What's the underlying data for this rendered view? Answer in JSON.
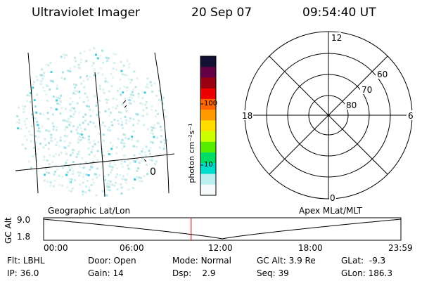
{
  "header": {
    "title": "Ultraviolet Imager",
    "date": "20 Sep 07",
    "time": "09:54:40 UT"
  },
  "image_panel": {
    "map_label": "Geographic Lat/Lon",
    "lon_marker": "0"
  },
  "colorbar": {
    "unit_label": "photon cm⁻²s⁻¹",
    "ticks": [
      "100",
      "10"
    ],
    "colors": [
      "#111133",
      "#660044",
      "#990011",
      "#ee0000",
      "#ff6600",
      "#ff9900",
      "#ffdd00",
      "#ccff00",
      "#55ee00",
      "#00dd66",
      "#00ddcc",
      "#bbeeee",
      "#f6fafa"
    ]
  },
  "polar_plot": {
    "label": "Apex MLat/MLT",
    "mlt_labels": {
      "top": "12",
      "left": "18",
      "right": "6",
      "bottom": "0"
    },
    "lat_labels": [
      "60",
      "70",
      "80"
    ]
  },
  "timeline": {
    "ylabel": "GC Alt",
    "y_ticks": [
      "9.0",
      "1.8"
    ],
    "x_ticks": [
      "00:00",
      "06:00",
      "12:00",
      "18:00",
      "23:59"
    ],
    "current_time_fraction": 0.413,
    "marker_color": "#dd0000"
  },
  "info": {
    "row1": [
      {
        "label": "Flt:",
        "value": "LBHL"
      },
      {
        "label": "Door:",
        "value": "Open"
      },
      {
        "label": "Mode:",
        "value": "Normal"
      },
      {
        "label": "GC Alt:",
        "value": "3.9 Re"
      },
      {
        "label": "GLat:",
        "value": "-9.3"
      }
    ],
    "row2": [
      {
        "label": "IP:",
        "value": "36.0"
      },
      {
        "label": "Gain:",
        "value": "14"
      },
      {
        "label": "Dsp:",
        "value": "2.9"
      },
      {
        "label": "Seq:",
        "value": "39"
      },
      {
        "label": "GLon:",
        "value": "186.3"
      }
    ]
  }
}
